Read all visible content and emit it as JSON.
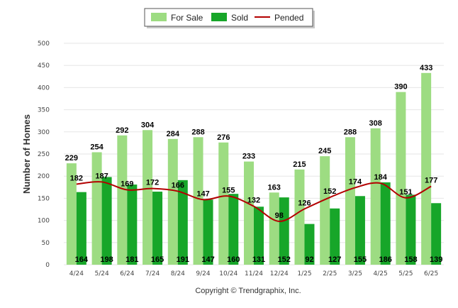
{
  "chart_data": {
    "type": "bar",
    "title": "",
    "xlabel": "",
    "ylabel": "Number of Homes",
    "ylim": [
      0,
      500
    ],
    "yticks": [
      0,
      50,
      100,
      150,
      200,
      250,
      300,
      350,
      400,
      450,
      500
    ],
    "grid": true,
    "legend_position": "top-center",
    "categories": [
      "4/24",
      "5/24",
      "6/24",
      "7/24",
      "8/24",
      "9/24",
      "10/24",
      "11/24",
      "12/24",
      "1/25",
      "2/25",
      "3/25",
      "4/25",
      "5/25",
      "6/25"
    ],
    "series": [
      {
        "name": "For Sale",
        "type": "bar",
        "color": "#9ddc82",
        "values": [
          229,
          254,
          292,
          304,
          284,
          288,
          276,
          233,
          163,
          215,
          245,
          288,
          308,
          390,
          433
        ]
      },
      {
        "name": "Sold",
        "type": "bar",
        "color": "#17a629",
        "values": [
          164,
          198,
          181,
          165,
          191,
          147,
          160,
          131,
          152,
          92,
          127,
          155,
          186,
          158,
          139
        ]
      },
      {
        "name": "Pended",
        "type": "line",
        "color": "#b30000",
        "values": [
          182,
          187,
          169,
          172,
          166,
          147,
          155,
          132,
          98,
          126,
          152,
          174,
          184,
          151,
          177
        ]
      }
    ],
    "footer": "Copyright © Trendgraphix, Inc."
  }
}
